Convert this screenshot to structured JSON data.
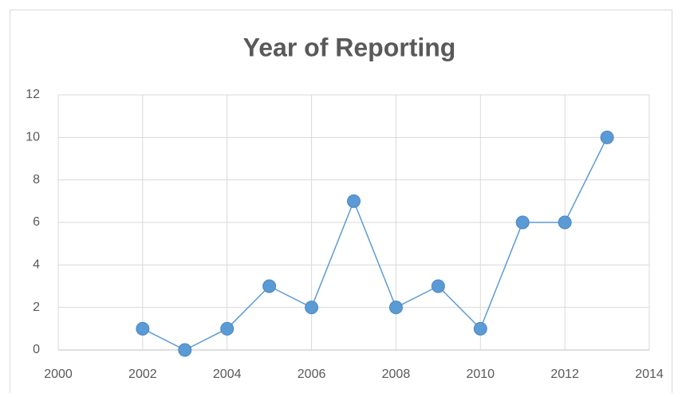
{
  "chart_data": {
    "type": "line",
    "title": "Year of Reporting",
    "x": [
      2002,
      2003,
      2004,
      2005,
      2006,
      2007,
      2008,
      2009,
      2010,
      2011,
      2012,
      2013
    ],
    "values": [
      1,
      0,
      1,
      3,
      2,
      7,
      2,
      3,
      1,
      6,
      6,
      10
    ],
    "color": "#5b9bd5",
    "xlim": [
      2000,
      2014
    ],
    "xticks": [
      2000,
      2002,
      2004,
      2006,
      2008,
      2010,
      2012,
      2014
    ],
    "ylim": [
      0,
      12
    ],
    "yticks": [
      0,
      2,
      4,
      6,
      8,
      10,
      12
    ],
    "grid": true
  }
}
